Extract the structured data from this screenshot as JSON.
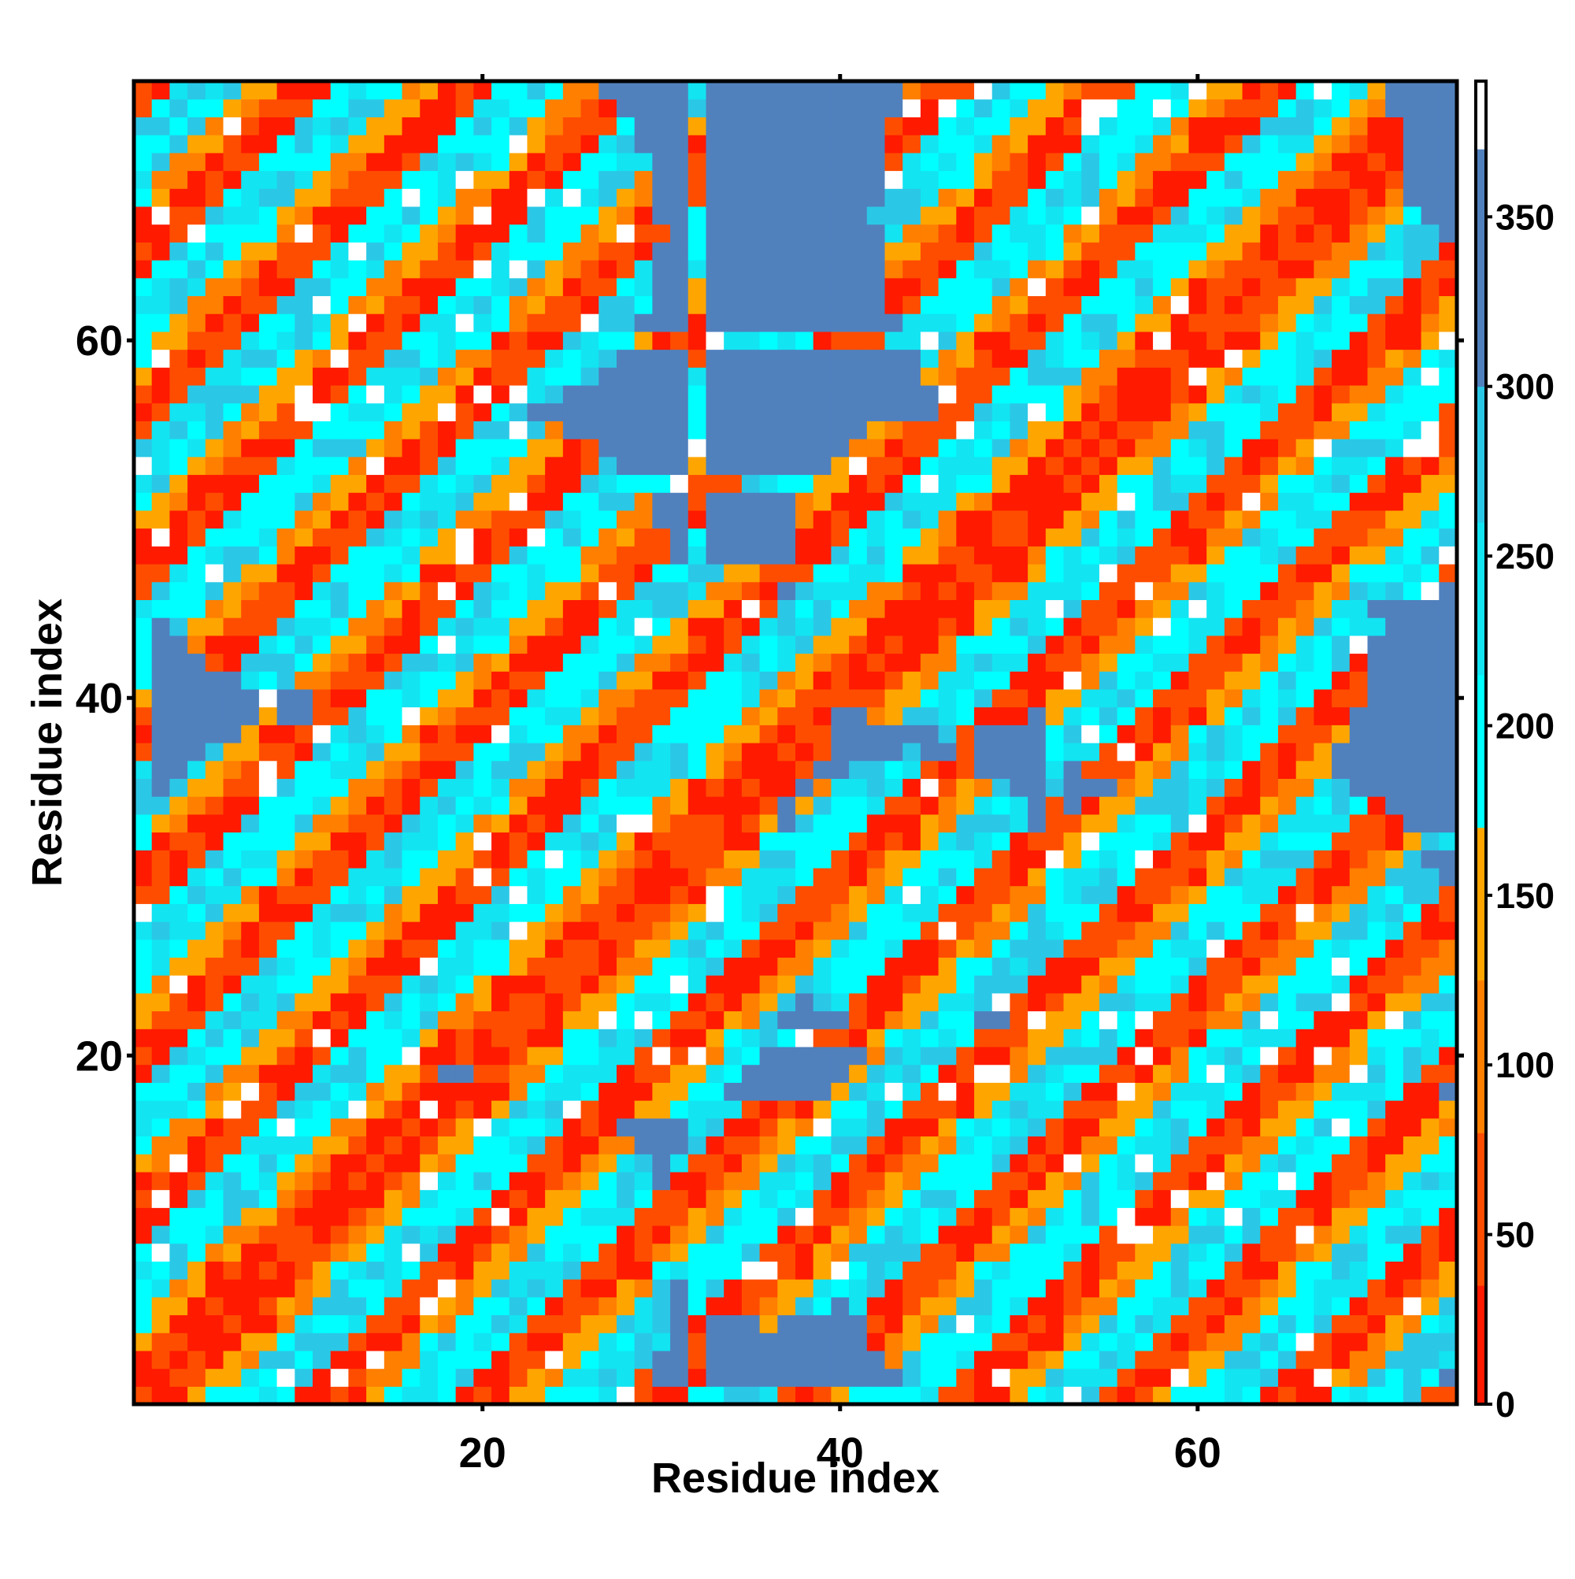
{
  "chart_data": {
    "type": "heatmap",
    "title": "",
    "xlabel": "Residue index",
    "ylabel": "Residue index",
    "xlim": [
      1,
      74
    ],
    "ylim": [
      1,
      74
    ],
    "x_ticks": [
      20,
      40,
      60
    ],
    "x_tick_labels": [
      "20",
      "40",
      "60"
    ],
    "y_ticks": [
      20,
      40,
      60
    ],
    "y_tick_labels": [
      "20",
      "40",
      "60"
    ],
    "grid": false,
    "legend": "colorbar-right",
    "colorbar": {
      "range": [
        0,
        390
      ],
      "ticks": [
        0,
        50,
        100,
        150,
        200,
        250,
        300,
        350
      ],
      "tick_labels": [
        "0",
        "50",
        "100",
        "150",
        "200",
        "250",
        "300",
        "350"
      ],
      "segments": [
        {
          "from": 0,
          "to": 35,
          "color": "#ff1a00"
        },
        {
          "from": 35,
          "to": 80,
          "color": "#ff4d00"
        },
        {
          "from": 80,
          "to": 125,
          "color": "#ff7f00"
        },
        {
          "from": 125,
          "to": 170,
          "color": "#ffa500"
        },
        {
          "from": 170,
          "to": 215,
          "color": "#00ffff"
        },
        {
          "from": 215,
          "to": 260,
          "color": "#12e4f2"
        },
        {
          "from": 260,
          "to": 300,
          "color": "#2ac8e6"
        },
        {
          "from": 300,
          "to": 370,
          "color": "#5081bd"
        },
        {
          "from": 370,
          "to": 390,
          "color": "#ffffff"
        }
      ]
    },
    "background_value": 330,
    "clusters": [
      {
        "center": [
          5,
          70
        ],
        "radius": 14
      },
      {
        "center": [
          20,
          66
        ],
        "radius": 10
      },
      {
        "center": [
          57,
          67
        ],
        "radius": 15
      },
      {
        "center": [
          69,
          56
        ],
        "radius": 11
      },
      {
        "center": [
          11,
          52
        ],
        "radius": 12
      },
      {
        "center": [
          20,
          45
        ],
        "radius": 11
      },
      {
        "center": [
          33,
          40
        ],
        "radius": 7
      },
      {
        "center": [
          46,
          47
        ],
        "radius": 9
      },
      {
        "center": [
          60,
          44
        ],
        "radius": 10
      },
      {
        "center": [
          27,
          27
        ],
        "radius": 11
      },
      {
        "center": [
          44,
          29
        ],
        "radius": 8
      },
      {
        "center": [
          11,
          28
        ],
        "radius": 11
      },
      {
        "center": [
          62,
          24
        ],
        "radius": 13
      },
      {
        "center": [
          5,
          9
        ],
        "radius": 12
      },
      {
        "center": [
          20,
          8
        ],
        "radius": 11
      },
      {
        "center": [
          36,
          11
        ],
        "radius": 6
      },
      {
        "center": [
          52,
          10
        ],
        "radius": 12
      },
      {
        "center": [
          67,
          10
        ],
        "radius": 10
      },
      {
        "center": [
          46,
          15
        ],
        "radius": 7
      }
    ],
    "line_rows": [
      1,
      8,
      17,
      21,
      32,
      47,
      52,
      60
    ],
    "line_cols": [
      1,
      8,
      17,
      21,
      32,
      47,
      52,
      60
    ]
  }
}
